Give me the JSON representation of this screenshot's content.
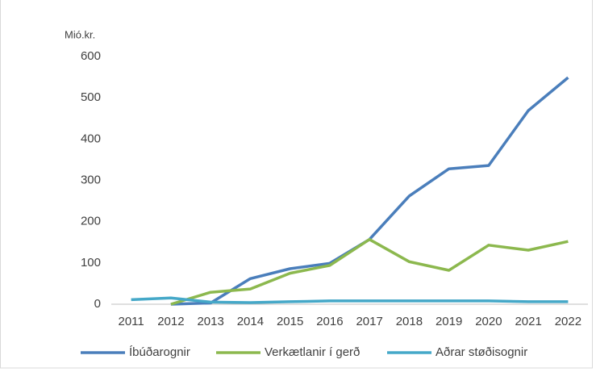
{
  "chart_data": {
    "type": "line",
    "y_label": "Mió.kr.",
    "categories": [
      "2011",
      "2012",
      "2013",
      "2014",
      "2015",
      "2016",
      "2017",
      "2018",
      "2019",
      "2020",
      "2021",
      "2022"
    ],
    "series": [
      {
        "name": "Íbúðarognir",
        "color": "#4a7ebb",
        "values": [
          null,
          0,
          3,
          62,
          86,
          99,
          157,
          262,
          328,
          336,
          469,
          549
        ]
      },
      {
        "name": "Verkætlanir í gerð",
        "color": "#8cb84e",
        "values": [
          null,
          0,
          29,
          37,
          75,
          94,
          157,
          103,
          82,
          143,
          131,
          152
        ]
      },
      {
        "name": "Aðrar støðisognir",
        "color": "#45a8c8",
        "values": [
          11,
          15,
          5,
          4,
          6,
          8,
          8,
          8,
          8,
          8,
          6,
          6
        ]
      }
    ],
    "ylim": [
      0,
      600
    ],
    "yticks": [
      0,
      100,
      200,
      300,
      400,
      500,
      600
    ],
    "grid": false,
    "legend": "bottom"
  }
}
